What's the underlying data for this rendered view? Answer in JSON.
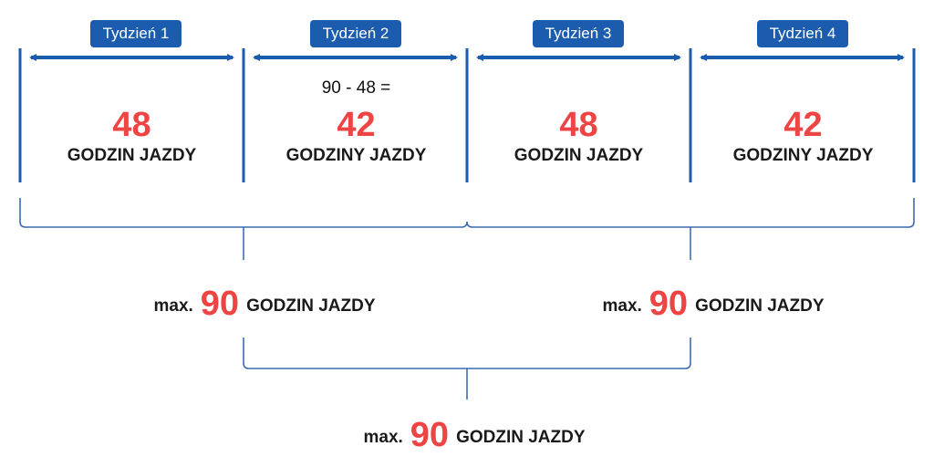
{
  "colors": {
    "accent": "#1c5cae",
    "highlight": "#ee4444",
    "text": "#1a1a1a"
  },
  "weeks": [
    {
      "tag": "Tydzień 1",
      "calc": "",
      "hours": "48",
      "label": "GODZIN JAZDY"
    },
    {
      "tag": "Tydzień 2",
      "calc": "90 - 48 =",
      "hours": "42",
      "label": "GODZINY JAZDY"
    },
    {
      "tag": "Tydzień 3",
      "calc": "",
      "hours": "48",
      "label": "GODZIN JAZDY"
    },
    {
      "tag": "Tydzień 4",
      "calc": "",
      "hours": "42",
      "label": "GODZINY JAZDY"
    }
  ],
  "limits": [
    {
      "prefix": "max.",
      "value": "90",
      "label": "GODZIN JAZDY"
    },
    {
      "prefix": "max.",
      "value": "90",
      "label": "GODZIN JAZDY"
    },
    {
      "prefix": "max.",
      "value": "90",
      "label": "GODZIN JAZDY"
    }
  ]
}
